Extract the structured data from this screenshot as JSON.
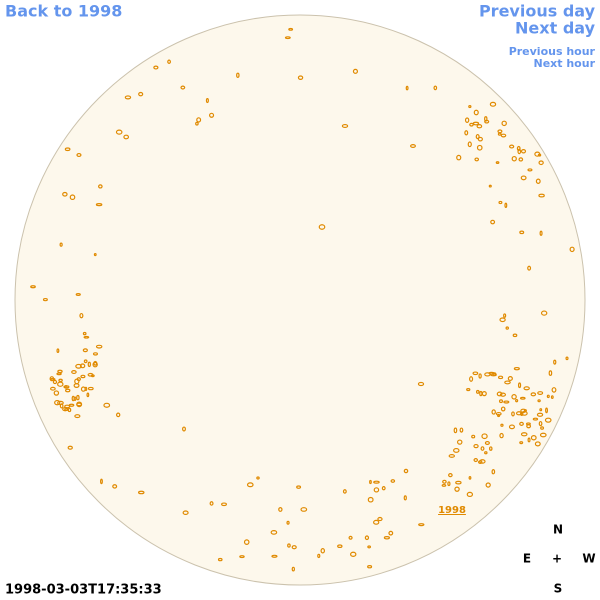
{
  "nav": {
    "back": "Back to 1998",
    "previous_day": "Previous day",
    "next_day": "Next day",
    "previous_hour": "Previous hour",
    "next_hour": "Next hour"
  },
  "image": {
    "label": "1998",
    "timestamp": "1998-03-03T17:35:33"
  },
  "compass": {
    "north": "N",
    "east": "E",
    "center": "+",
    "west": "W",
    "south": "S"
  }
}
